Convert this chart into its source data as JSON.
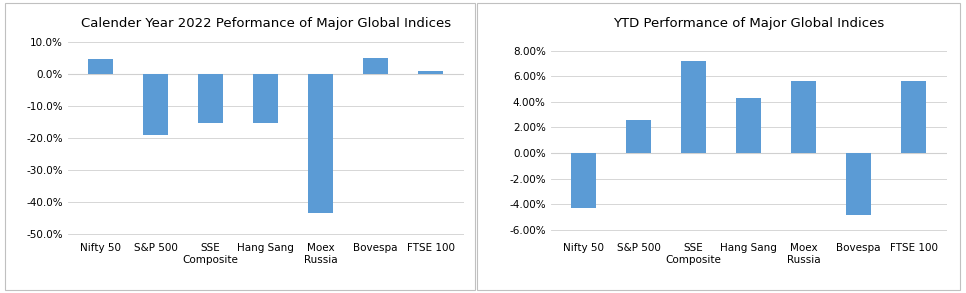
{
  "left": {
    "title": "Calender Year 2022 Peformance of Major Global Indices",
    "categories": [
      "Nifty 50",
      "S&P 500",
      "SSE\nComposite",
      "Hang Sang",
      "Moex\nRussia",
      "Bovespa",
      "FTSE 100"
    ],
    "values": [
      0.047,
      -0.193,
      -0.155,
      -0.155,
      -0.435,
      0.049,
      0.008
    ],
    "ylim": [
      -0.52,
      0.12
    ],
    "yticks": [
      0.1,
      0.0,
      -0.1,
      -0.2,
      -0.3,
      -0.4,
      -0.5
    ],
    "bar_color": "#5B9BD5"
  },
  "right": {
    "title": "YTD Performance of Major Global Indices",
    "categories": [
      "Nifty 50",
      "S&P 500",
      "SSE\nComposite",
      "Hang Sang",
      "Moex\nRussia",
      "Bovespa",
      "FTSE 100"
    ],
    "values": [
      -0.043,
      0.026,
      0.072,
      0.043,
      0.056,
      -0.048,
      0.056
    ],
    "ylim": [
      -0.068,
      0.092
    ],
    "yticks": [
      0.08,
      0.06,
      0.04,
      0.02,
      0.0,
      -0.02,
      -0.04,
      -0.06
    ],
    "bar_color": "#5B9BD5"
  },
  "bg_color": "#FFFFFF",
  "grid_color": "#D0D0D0",
  "border_color": "#C0C0C0",
  "title_fontsize": 9.5,
  "tick_fontsize": 7.5,
  "bar_width": 0.45
}
